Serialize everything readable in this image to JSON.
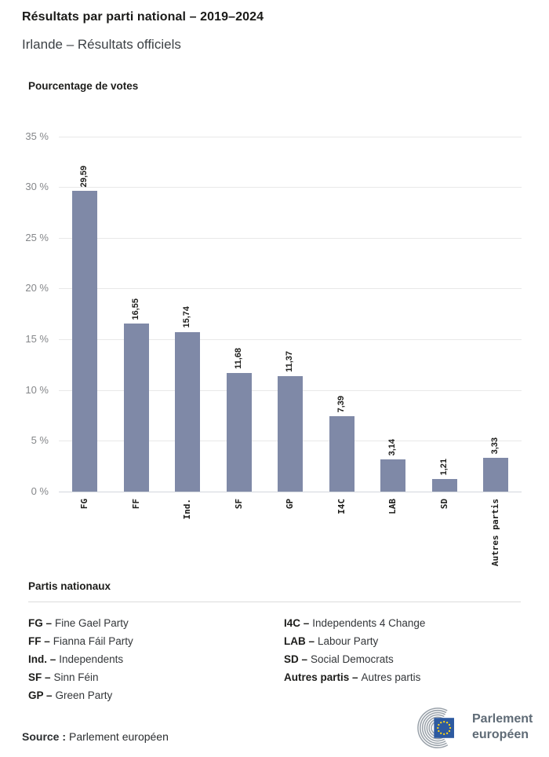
{
  "header": {
    "title": "Résultats par parti national – 2019–2024",
    "subtitle": "Irlande – Résultats officiels"
  },
  "chart_data": {
    "type": "bar",
    "title": "Pourcentage de votes",
    "categories": [
      "FG",
      "FF",
      "Ind.",
      "SF",
      "GP",
      "I4C",
      "LAB",
      "SD",
      "Autres partis"
    ],
    "values": [
      29.59,
      16.55,
      15.74,
      11.68,
      11.37,
      7.39,
      3.14,
      1.21,
      3.33
    ],
    "value_labels": [
      "29,59",
      "16,55",
      "15,74",
      "11,68",
      "11,37",
      "7,39",
      "3,14",
      "1,21",
      "3,33"
    ],
    "xlabel": "",
    "ylabel": "",
    "ylim": [
      0,
      35
    ],
    "ytick_step": 5,
    "ytick_suffix": " %",
    "grid": true,
    "legend_position": "none",
    "bar_color": "#7f89a7"
  },
  "legend": {
    "heading": "Partis nationaux",
    "separator": " –",
    "columns": [
      [
        {
          "abbr": "FG",
          "name": "Fine Gael Party"
        },
        {
          "abbr": "FF",
          "name": "Fianna Fáil Party"
        },
        {
          "abbr": "Ind.",
          "name": "Independents"
        },
        {
          "abbr": "SF",
          "name": "Sinn Féin"
        },
        {
          "abbr": "GP",
          "name": "Green Party"
        }
      ],
      [
        {
          "abbr": "I4C",
          "name": "Independents 4 Change"
        },
        {
          "abbr": "LAB",
          "name": "Labour Party"
        },
        {
          "abbr": "SD",
          "name": "Social Democrats"
        },
        {
          "abbr": "Autres partis",
          "name": "Autres partis"
        }
      ]
    ]
  },
  "footer": {
    "source_label": "Source :",
    "source_text": "Parlement européen",
    "logo": {
      "line1": "Parlement",
      "line2": "européen",
      "eu_blue": "#2d5aa0",
      "star_yellow": "#ffd617",
      "arc_gray": "#9aa2aa",
      "text_gray": "#5f6b76"
    }
  }
}
